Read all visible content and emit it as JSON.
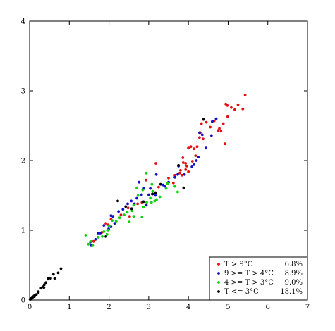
{
  "chart_data": {
    "type": "scatter",
    "title": "",
    "xlabel": "",
    "ylabel": "",
    "xlim": [
      0,
      7
    ],
    "ylim": [
      0,
      4
    ],
    "x_ticks": [
      "0",
      "1",
      "2",
      "3",
      "4",
      "5",
      "6",
      "7"
    ],
    "y_ticks": [
      "0",
      "1",
      "2",
      "3",
      "4"
    ],
    "grid": false,
    "legend_position": "bottom-right",
    "series": [
      {
        "name": "T > 9°C",
        "percent": "6.8%",
        "color": "#e01010",
        "points": [
          [
            5.43,
            2.94
          ],
          [
            5.37,
            2.74
          ],
          [
            5.25,
            2.8
          ],
          [
            5.17,
            2.73
          ],
          [
            5.08,
            2.76
          ],
          [
            4.98,
            2.79
          ],
          [
            4.94,
            2.81
          ],
          [
            4.99,
            2.63
          ],
          [
            4.88,
            2.53
          ],
          [
            4.82,
            2.42
          ],
          [
            4.74,
            2.43
          ],
          [
            4.78,
            2.46
          ],
          [
            4.92,
            2.24
          ],
          [
            4.65,
            2.57
          ],
          [
            4.45,
            2.55
          ],
          [
            4.33,
            2.53
          ],
          [
            4.28,
            2.33
          ],
          [
            4.37,
            2.31
          ],
          [
            4.22,
            2.2
          ],
          [
            4.14,
            2.17
          ],
          [
            4.06,
            2.2
          ],
          [
            4.18,
            2.07
          ],
          [
            4.0,
            2.18
          ],
          [
            4.1,
            1.99
          ],
          [
            3.93,
            1.96
          ],
          [
            3.86,
            2.04
          ],
          [
            3.87,
            1.97
          ],
          [
            3.96,
            1.92
          ],
          [
            3.8,
            1.86
          ],
          [
            3.78,
            1.82
          ],
          [
            3.84,
            1.79
          ],
          [
            3.93,
            1.87
          ],
          [
            4.0,
            1.84
          ],
          [
            3.66,
            1.79
          ],
          [
            3.5,
            1.75
          ],
          [
            3.25,
            1.62
          ],
          [
            3.18,
            1.96
          ],
          [
            2.93,
            1.72
          ],
          [
            2.83,
            1.4
          ],
          [
            2.72,
            1.38
          ],
          [
            2.52,
            1.2
          ],
          [
            2.48,
            1.32
          ],
          [
            2.3,
            1.22
          ],
          [
            2.05,
            1.16
          ],
          [
            1.98,
            1.08
          ],
          [
            1.92,
            1.1
          ],
          [
            1.82,
            0.97
          ],
          [
            1.72,
            0.9
          ],
          [
            1.61,
            0.84
          ],
          [
            3.62,
            1.68
          ],
          [
            4.3,
            2.4
          ],
          [
            4.55,
            2.48
          ]
        ]
      },
      {
        "name": "9 >= T > 4°C",
        "percent": "8.9%",
        "color": "#1010c8",
        "points": [
          [
            4.7,
            2.6
          ],
          [
            4.6,
            2.56
          ],
          [
            4.35,
            2.37
          ],
          [
            4.28,
            2.4
          ],
          [
            4.58,
            2.36
          ],
          [
            4.44,
            2.18
          ],
          [
            4.25,
            2.05
          ],
          [
            4.14,
            1.94
          ],
          [
            4.09,
            1.91
          ],
          [
            3.9,
            1.8
          ],
          [
            3.75,
            1.92
          ],
          [
            3.66,
            1.76
          ],
          [
            3.73,
            1.8
          ],
          [
            3.5,
            1.69
          ],
          [
            3.36,
            1.65
          ],
          [
            3.17,
            1.5
          ],
          [
            3.1,
            1.52
          ],
          [
            3.04,
            1.6
          ],
          [
            3.0,
            1.51
          ],
          [
            2.88,
            1.6
          ],
          [
            2.82,
            1.51
          ],
          [
            2.76,
            1.69
          ],
          [
            2.64,
            1.38
          ],
          [
            2.56,
            1.42
          ],
          [
            2.47,
            1.38
          ],
          [
            2.35,
            1.3
          ],
          [
            2.24,
            1.27
          ],
          [
            2.1,
            1.2
          ],
          [
            2.14,
            1.1
          ],
          [
            2.05,
            1.05
          ],
          [
            1.99,
            1.02
          ],
          [
            1.87,
            1.07
          ],
          [
            1.78,
            0.96
          ],
          [
            1.66,
            0.87
          ],
          [
            1.53,
            0.83
          ],
          [
            1.55,
            0.78
          ],
          [
            1.72,
            0.96
          ],
          [
            2.05,
            1.21
          ],
          [
            3.19,
            1.8
          ],
          [
            3.4,
            1.63
          ],
          [
            2.94,
            1.36
          ],
          [
            2.7,
            1.46
          ],
          [
            4.2,
            2.0
          ]
        ]
      },
      {
        "name": "4 >= T > 3°C",
        "percent": "9.0%",
        "color": "#10d010",
        "points": [
          [
            3.47,
            1.67
          ],
          [
            3.44,
            1.6
          ],
          [
            3.08,
            1.66
          ],
          [
            3.1,
            1.56
          ],
          [
            3.04,
            1.46
          ],
          [
            3.15,
            1.42
          ],
          [
            3.07,
            1.4
          ],
          [
            2.95,
            1.4
          ],
          [
            2.87,
            1.33
          ],
          [
            2.94,
            1.82
          ],
          [
            2.85,
            1.58
          ],
          [
            2.7,
            1.61
          ],
          [
            2.62,
            1.36
          ],
          [
            2.58,
            1.28
          ],
          [
            2.46,
            1.26
          ],
          [
            2.38,
            1.22
          ],
          [
            2.27,
            1.18
          ],
          [
            2.18,
            1.13
          ],
          [
            2.0,
            1.06
          ],
          [
            1.98,
            1.0
          ],
          [
            1.87,
            0.98
          ],
          [
            1.83,
            0.91
          ],
          [
            1.73,
            0.9
          ],
          [
            1.59,
            0.78
          ],
          [
            1.48,
            0.8
          ],
          [
            1.41,
            0.93
          ],
          [
            1.55,
            0.84
          ],
          [
            1.95,
            0.94
          ],
          [
            2.62,
            1.2
          ],
          [
            2.83,
            1.19
          ],
          [
            3.2,
            1.44
          ],
          [
            3.66,
            1.63
          ],
          [
            3.73,
            1.55
          ],
          [
            2.73,
            1.5
          ],
          [
            3.28,
            1.48
          ],
          [
            2.51,
            1.12
          ],
          [
            2.08,
            1.14
          ]
        ]
      },
      {
        "name": "T <= 3°C",
        "percent": "18.1%",
        "color": "#000000",
        "points": [
          [
            0.79,
            0.45
          ],
          [
            0.72,
            0.39
          ],
          [
            0.6,
            0.37
          ],
          [
            0.53,
            0.31
          ],
          [
            0.46,
            0.3
          ],
          [
            0.41,
            0.25
          ],
          [
            0.37,
            0.22
          ],
          [
            0.33,
            0.19
          ],
          [
            0.29,
            0.17
          ],
          [
            0.22,
            0.12
          ],
          [
            0.17,
            0.08
          ],
          [
            0.14,
            0.07
          ],
          [
            0.11,
            0.06
          ],
          [
            0.1,
            0.05
          ],
          [
            0.08,
            0.04
          ],
          [
            0.06,
            0.03
          ],
          [
            0.05,
            0.02
          ],
          [
            0.03,
            0.02
          ],
          [
            0.02,
            0.01
          ],
          [
            0.01,
            0.01
          ],
          [
            0.15,
            0.07
          ],
          [
            0.47,
            0.31
          ],
          [
            0.36,
            0.18
          ],
          [
            0.63,
            0.31
          ],
          [
            2.22,
            1.42
          ],
          [
            2.57,
            1.31
          ],
          [
            2.42,
            1.34
          ],
          [
            2.87,
            1.41
          ],
          [
            3.17,
            1.54
          ],
          [
            3.88,
            1.61
          ],
          [
            4.38,
            2.59
          ],
          [
            3.75,
            1.93
          ],
          [
            3.3,
            1.66
          ],
          [
            3.09,
            1.52
          ],
          [
            1.92,
            0.91
          ],
          [
            0.22,
            0.11
          ],
          [
            0.04,
            0.02
          ],
          [
            0.12,
            0.05
          ]
        ]
      }
    ]
  }
}
